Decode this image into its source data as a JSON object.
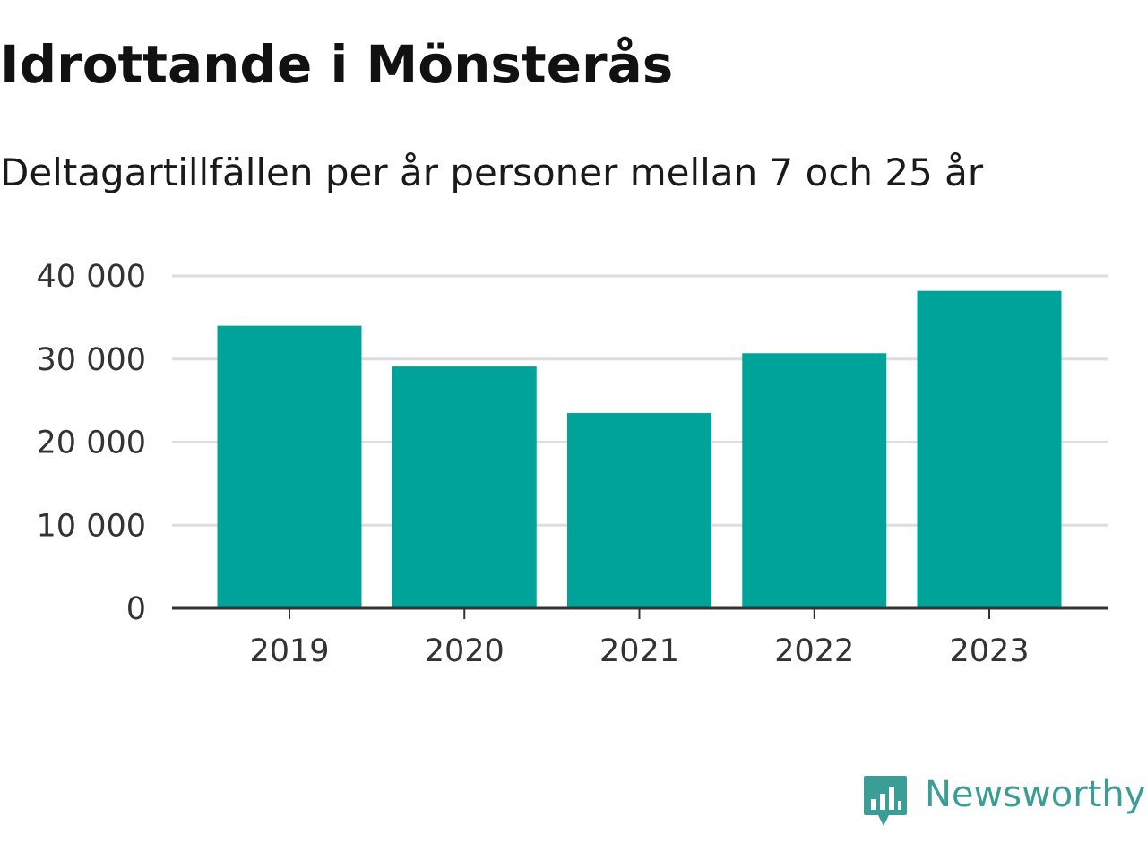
{
  "header": {
    "title": "Idrottande i Mönsterås",
    "subtitle": "Deltagartillfällen per år personer mellan 7 och 25 år"
  },
  "chart_data": {
    "type": "bar",
    "title": "Idrottande i Mönsterås",
    "subtitle": "Deltagartillfällen per år personer mellan 7 och 25 år",
    "xlabel": "",
    "ylabel": "",
    "categories": [
      "2019",
      "2020",
      "2021",
      "2022",
      "2023"
    ],
    "values": [
      34000,
      29100,
      23500,
      30700,
      38200
    ],
    "ylim": [
      0,
      40000
    ],
    "yticks": [
      0,
      10000,
      20000,
      30000,
      40000
    ],
    "ytick_labels": [
      "0",
      "10 000",
      "20 000",
      "30 000",
      "40 000"
    ],
    "grid": true,
    "legend": "none",
    "bar_color": "#00a39a"
  },
  "colors": {
    "bar": "#00a39a",
    "grid": "#dddddd",
    "axis": "#333333",
    "brand": "#3a9e96"
  },
  "branding": {
    "name": "Newsworthy",
    "icon": "bar-chart-speech-bubble-icon"
  }
}
